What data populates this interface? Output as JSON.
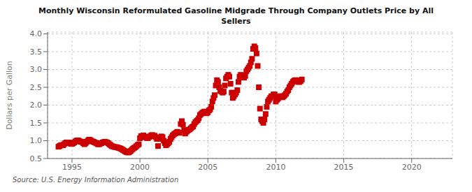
{
  "chart_data": {
    "type": "scatter",
    "title": "Monthly Wisconsin Reformulated Gasoline Midgrade Through Company Outlets Price by All\nSellers",
    "ylabel": "Dollars per Gallon",
    "annotations": [
      "Source: U.S. Energy Information Administration"
    ],
    "color": "#cc0000",
    "marker": "square",
    "grid": true,
    "xlim": [
      1993.2,
      2023.0
    ],
    "ylim": [
      0.5,
      4.05
    ],
    "xticks": [
      1995,
      2000,
      2005,
      2010,
      2015,
      2020
    ],
    "yticks": [
      0.5,
      {
        "value": 1.0,
        "label": "1.0"
      },
      1.5,
      {
        "value": 2.0,
        "label": "2.0"
      },
      2.5,
      {
        "value": 3.0,
        "label": "3.0"
      },
      3.5,
      {
        "value": 4.0,
        "label": "4.0"
      }
    ],
    "x": [
      1994.0,
      1994.083,
      1994.167,
      1994.25,
      1994.333,
      1994.417,
      1994.5,
      1994.583,
      1994.667,
      1994.75,
      1994.833,
      1994.917,
      1995.0,
      1995.083,
      1995.167,
      1995.25,
      1995.333,
      1995.417,
      1995.5,
      1995.583,
      1995.667,
      1995.75,
      1995.833,
      1995.917,
      1996.0,
      1996.083,
      1996.167,
      1996.25,
      1996.333,
      1996.417,
      1996.5,
      1996.583,
      1996.667,
      1996.75,
      1996.833,
      1996.917,
      1997.0,
      1997.083,
      1997.167,
      1997.25,
      1997.333,
      1997.417,
      1997.5,
      1997.583,
      1997.667,
      1997.75,
      1997.833,
      1997.917,
      1998.0,
      1998.083,
      1998.167,
      1998.25,
      1998.333,
      1998.417,
      1998.5,
      1998.583,
      1998.667,
      1998.75,
      1998.833,
      1998.917,
      1999.0,
      1999.083,
      1999.167,
      1999.25,
      1999.333,
      1999.417,
      1999.5,
      1999.583,
      1999.667,
      1999.75,
      1999.833,
      1999.917,
      2000.0,
      2000.083,
      2000.167,
      2000.25,
      2000.333,
      2000.417,
      2000.5,
      2000.583,
      2000.667,
      2000.75,
      2000.833,
      2000.917,
      2001.0,
      2001.083,
      2001.167,
      2001.25,
      2001.333,
      2001.417,
      2001.5,
      2001.583,
      2001.667,
      2001.75,
      2001.833,
      2001.917,
      2002.0,
      2002.083,
      2002.167,
      2002.25,
      2002.333,
      2002.417,
      2002.5,
      2002.583,
      2002.667,
      2002.75,
      2002.833,
      2002.917,
      2003.0,
      2003.083,
      2003.167,
      2003.25,
      2003.333,
      2003.417,
      2003.5,
      2003.583,
      2003.667,
      2003.75,
      2003.833,
      2003.917,
      2004.0,
      2004.083,
      2004.167,
      2004.25,
      2004.333,
      2004.417,
      2004.5,
      2004.583,
      2004.667,
      2004.75,
      2004.833,
      2004.917,
      2005.0,
      2005.083,
      2005.167,
      2005.25,
      2005.333,
      2005.417,
      2005.5,
      2005.583,
      2005.667,
      2005.75,
      2005.833,
      2005.917,
      2006.0,
      2006.083,
      2006.167,
      2006.25,
      2006.333,
      2006.417,
      2006.5,
      2006.583,
      2006.667,
      2006.75,
      2006.833,
      2006.917,
      2007.0,
      2007.083,
      2007.167,
      2007.25,
      2007.333,
      2007.417,
      2007.5,
      2007.583,
      2007.667,
      2007.75,
      2007.833,
      2007.917,
      2008.0,
      2008.083,
      2008.167,
      2008.25,
      2008.333,
      2008.417,
      2008.5,
      2008.583,
      2008.667,
      2008.75,
      2008.833,
      2008.917,
      2009.0,
      2009.083,
      2009.167,
      2009.25,
      2009.333,
      2009.417,
      2009.5,
      2009.583,
      2009.667,
      2009.75,
      2009.833,
      2009.917,
      2010.0,
      2010.083,
      2010.167,
      2010.25,
      2010.333,
      2010.417,
      2010.5,
      2010.583,
      2010.667,
      2010.75,
      2010.833,
      2010.917,
      2011.0,
      2011.083,
      2011.167,
      2011.25,
      2011.333,
      2011.417,
      2011.5,
      2011.583,
      2011.667,
      2011.75,
      2011.833,
      2011.917
    ],
    "values": [
      0.83,
      0.85,
      0.87,
      0.88,
      0.87,
      0.9,
      0.93,
      0.95,
      0.95,
      0.95,
      0.93,
      0.91,
      0.91,
      0.93,
      0.95,
      0.98,
      1.0,
      1.01,
      1.0,
      0.98,
      0.97,
      0.96,
      0.93,
      0.9,
      0.93,
      0.97,
      1.0,
      1.03,
      1.02,
      1.0,
      0.98,
      0.97,
      0.95,
      0.94,
      0.92,
      0.9,
      0.9,
      0.92,
      0.93,
      0.95,
      0.96,
      0.97,
      0.96,
      0.95,
      0.93,
      0.9,
      0.88,
      0.85,
      0.84,
      0.83,
      0.82,
      0.82,
      0.81,
      0.8,
      0.79,
      0.78,
      0.76,
      0.74,
      0.72,
      0.7,
      0.68,
      0.67,
      0.67,
      0.69,
      0.72,
      0.75,
      0.78,
      0.8,
      0.82,
      0.85,
      0.88,
      0.9,
      1.07,
      1.13,
      1.1,
      1.15,
      1.12,
      1.1,
      1.08,
      1.07,
      1.1,
      1.12,
      1.15,
      1.16,
      1.13,
      1.14,
      1.1,
      1.05,
      0.85,
      1.05,
      1.08,
      1.12,
      1.1,
      1.0,
      0.93,
      0.87,
      0.9,
      0.93,
      0.97,
      1.05,
      1.1,
      1.15,
      1.18,
      1.2,
      1.22,
      1.25,
      1.23,
      1.22,
      1.47,
      1.55,
      1.45,
      1.3,
      1.2,
      1.25,
      1.28,
      1.3,
      1.32,
      1.35,
      1.38,
      1.4,
      1.47,
      1.52,
      1.55,
      1.58,
      1.63,
      1.72,
      1.75,
      1.78,
      1.8,
      1.82,
      1.8,
      1.77,
      1.8,
      1.85,
      1.88,
      1.95,
      2.1,
      2.2,
      2.28,
      2.55,
      2.7,
      2.65,
      2.5,
      2.4,
      2.38,
      2.35,
      2.38,
      2.55,
      2.75,
      2.8,
      2.85,
      2.8,
      2.6,
      2.35,
      2.2,
      2.25,
      2.3,
      2.35,
      2.42,
      2.65,
      2.8,
      2.85,
      2.82,
      2.8,
      2.77,
      2.82,
      2.95,
      3.0,
      3.05,
      3.1,
      3.2,
      3.3,
      3.58,
      3.65,
      3.6,
      3.45,
      3.1,
      2.5,
      1.9,
      1.6,
      1.55,
      1.5,
      1.6,
      1.75,
      1.95,
      2.1,
      2.15,
      2.2,
      2.25,
      2.25,
      2.3,
      2.3,
      2.1,
      2.15,
      2.18,
      2.22,
      2.25,
      2.25,
      2.22,
      2.25,
      2.28,
      2.32,
      2.38,
      2.42,
      2.5,
      2.55,
      2.6,
      2.65,
      2.68,
      2.7,
      2.7,
      2.68,
      2.65,
      2.65,
      2.68,
      2.72
    ]
  }
}
